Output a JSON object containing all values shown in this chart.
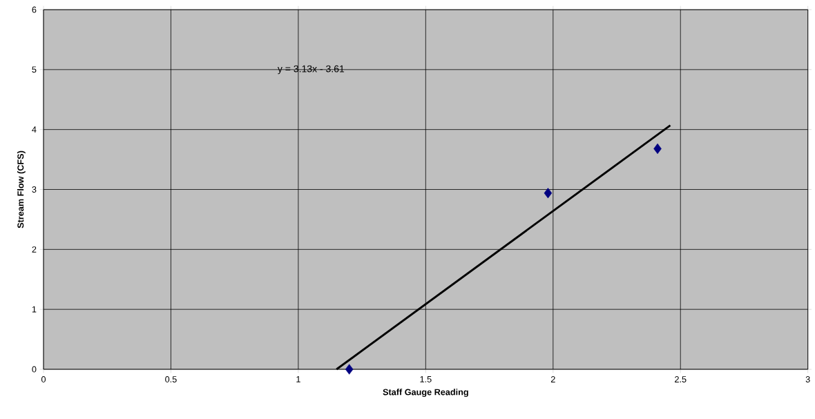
{
  "chart_data": {
    "type": "scatter",
    "xlabel": "Staff Gauge Reading",
    "ylabel": "Stream Flow (CFS)",
    "annotations": [
      "y = 3.13x - 3.61"
    ],
    "series": [
      {
        "color": "#000080",
        "marker": "diamond",
        "x": [
          1.2,
          1.98,
          2.41
        ],
        "values": [
          0,
          2.94,
          3.68
        ]
      },
      {
        "type": "line",
        "color": "#000000",
        "marker": "none",
        "line_style": "solid",
        "x": [
          1.15,
          2.46
        ],
        "values": [
          0,
          4.07
        ]
      }
    ],
    "xlim": [
      0,
      3
    ],
    "ylim": [
      0,
      6
    ],
    "xticks": [
      0,
      0.5,
      1,
      1.5,
      2,
      2.5,
      3
    ],
    "yticks": [
      0,
      1,
      2,
      3,
      4,
      5,
      6
    ],
    "grid": true
  }
}
